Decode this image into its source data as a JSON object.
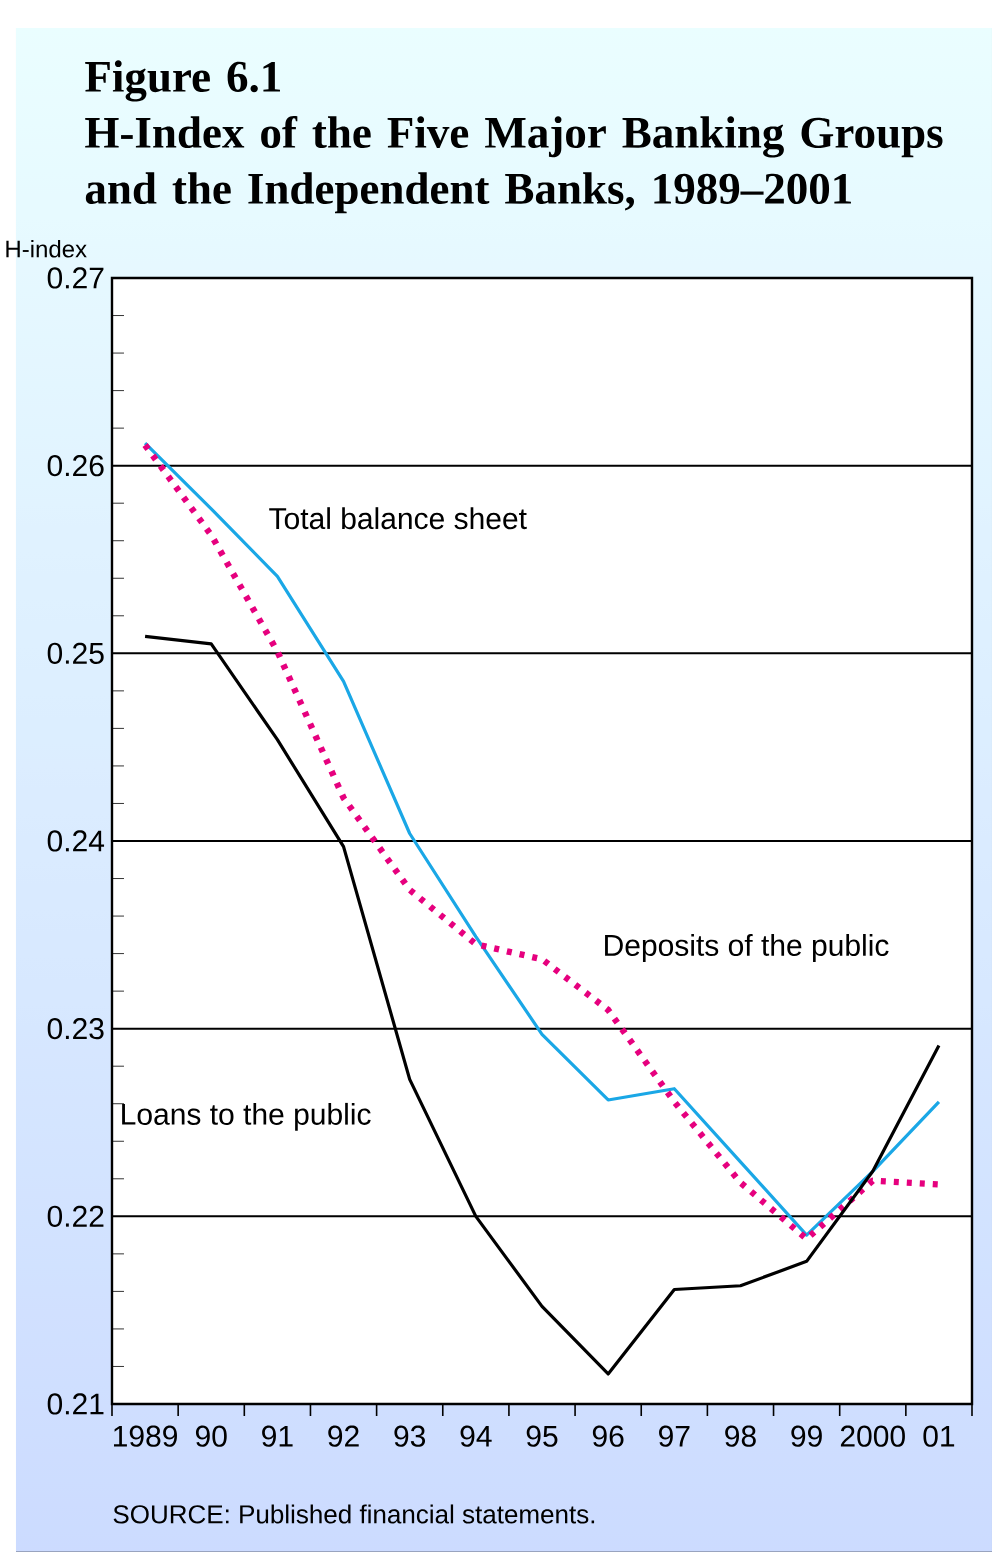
{
  "chart_data": {
    "type": "line",
    "title": "Figure 6.1",
    "subtitle": "H-Index of the Five Major Banking Groups and the Independent Banks,  1989–2001",
    "ylabel": "H-index",
    "annotations": [
      "SOURCE: Published financial statements."
    ],
    "x": [
      1989,
      1990,
      1991,
      1992,
      1993,
      1994,
      1995,
      1996,
      1997,
      1998,
      1999,
      2000,
      2001
    ],
    "series": [
      {
        "name": "Total balance sheet",
        "color": "#1aa7e6",
        "line_style": "solid",
        "values": [
          0.2612,
          0.2577,
          0.2541,
          0.2485,
          0.2404,
          0.2349,
          0.2297,
          0.2262,
          0.2268,
          0.2229,
          0.219,
          0.2224,
          0.2261
        ]
      },
      {
        "name": "Deposits of the public",
        "color": "#e6007e",
        "line_style": "dotted",
        "values": [
          0.2611,
          0.2563,
          0.2501,
          0.2423,
          0.2374,
          0.2345,
          0.2337,
          0.231,
          0.2261,
          0.2218,
          0.2188,
          0.2219,
          0.2217
        ]
      },
      {
        "name": "Loans to the public",
        "color": "#000000",
        "line_style": "solid",
        "values": [
          0.2509,
          0.2505,
          0.2454,
          0.2397,
          0.2273,
          0.22,
          0.2152,
          0.2116,
          0.2161,
          0.2163,
          0.2176,
          0.2224,
          0.2291
        ]
      }
    ],
    "xlim": [
      1988.5,
      2001.5
    ],
    "xticks": [
      {
        "value": 1989,
        "label": "1989"
      },
      {
        "value": 1990,
        "label": "90"
      },
      {
        "value": 1991,
        "label": "91"
      },
      {
        "value": 1992,
        "label": "92"
      },
      {
        "value": 1993,
        "label": "93"
      },
      {
        "value": 1994,
        "label": "94"
      },
      {
        "value": 1995,
        "label": "95"
      },
      {
        "value": 1996,
        "label": "96"
      },
      {
        "value": 1997,
        "label": "97"
      },
      {
        "value": 1998,
        "label": "98"
      },
      {
        "value": 1999,
        "label": "99"
      },
      {
        "value": 2000,
        "label": "2000"
      },
      {
        "value": 2001,
        "label": "01"
      },
      {
        "value": 1988.5,
        "label": null
      },
      {
        "value": 1989.5,
        "label": null
      },
      {
        "value": 1990.5,
        "label": null
      },
      {
        "value": 1991.5,
        "label": null
      },
      {
        "value": 1992.5,
        "label": null
      },
      {
        "value": 1993.5,
        "label": null
      },
      {
        "value": 1994.5,
        "label": null
      },
      {
        "value": 1995.5,
        "label": null
      },
      {
        "value": 1996.5,
        "label": null
      },
      {
        "value": 1997.5,
        "label": null
      },
      {
        "value": 1998.5,
        "label": null
      },
      {
        "value": 1999.5,
        "label": null
      },
      {
        "value": 2000.5,
        "label": null
      },
      {
        "value": 2001.5,
        "label": null
      }
    ],
    "ylim": [
      0.21,
      0.27
    ],
    "yticks": [
      {
        "value": 0.21,
        "label": "0.21"
      },
      {
        "value": 0.22,
        "label": "0.22"
      },
      {
        "value": 0.23,
        "label": "0.23"
      },
      {
        "value": 0.24,
        "label": "0.24"
      },
      {
        "value": 0.25,
        "label": "0.25"
      },
      {
        "value": 0.26,
        "label": "0.26"
      },
      {
        "value": 0.27,
        "label": "0.27"
      },
      {
        "value": 0.212,
        "label": null
      },
      {
        "value": 0.214,
        "label": null
      },
      {
        "value": 0.216,
        "label": null
      },
      {
        "value": 0.218,
        "label": null
      },
      {
        "value": 0.222,
        "label": null
      },
      {
        "value": 0.224,
        "label": null
      },
      {
        "value": 0.226,
        "label": null
      },
      {
        "value": 0.228,
        "label": null
      },
      {
        "value": 0.232,
        "label": null
      },
      {
        "value": 0.234,
        "label": null
      },
      {
        "value": 0.236,
        "label": null
      },
      {
        "value": 0.238,
        "label": null
      },
      {
        "value": 0.242,
        "label": null
      },
      {
        "value": 0.244,
        "label": null
      },
      {
        "value": 0.246,
        "label": null
      },
      {
        "value": 0.248,
        "label": null
      },
      {
        "value": 0.252,
        "label": null
      },
      {
        "value": 0.254,
        "label": null
      },
      {
        "value": 0.256,
        "label": null
      },
      {
        "value": 0.258,
        "label": null
      },
      {
        "value": 0.262,
        "label": null
      },
      {
        "value": 0.264,
        "label": null
      },
      {
        "value": 0.266,
        "label": null
      },
      {
        "value": 0.268,
        "label": null
      }
    ],
    "grid": "y"
  }
}
